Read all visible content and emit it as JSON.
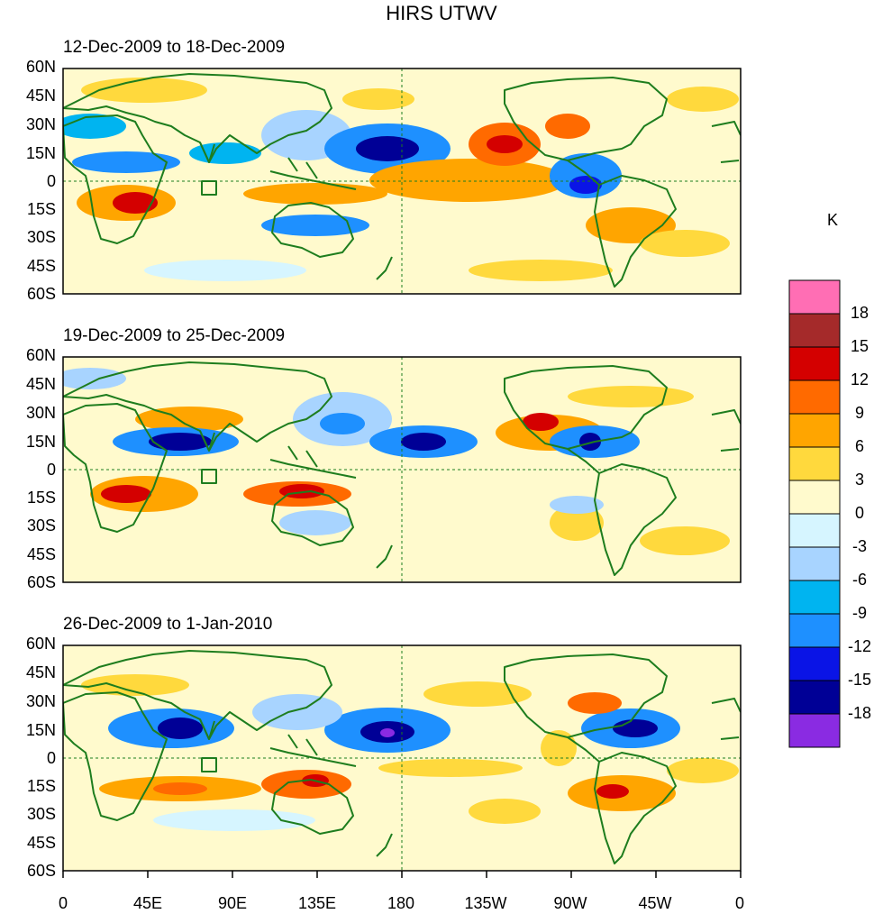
{
  "title": "HIRS UTWV",
  "unit": "K",
  "panels": [
    {
      "label": "12-Dec-2009 to 18-Dec-2009"
    },
    {
      "label": "19-Dec-2009 to 25-Dec-2009"
    },
    {
      "label": "26-Dec-2009 to 1-Jan-2010"
    }
  ],
  "lat_labels": [
    "60N",
    "45N",
    "30N",
    "15N",
    "0",
    "15S",
    "30S",
    "45S",
    "60S"
  ],
  "lon_labels": [
    "0",
    "45E",
    "90E",
    "135E",
    "180",
    "135W",
    "90W",
    "45W",
    "0"
  ],
  "colorbar": {
    "tick_labels": [
      "18",
      "15",
      "12",
      "9",
      "6",
      "3",
      "0",
      "-3",
      "-6",
      "-9",
      "-12",
      "-15",
      "-18"
    ],
    "colors_top_to_bottom": [
      "#ff6eb4",
      "#a52a2a",
      "#d40000",
      "#ff6a00",
      "#ffa500",
      "#ffd93d",
      "#fffacd",
      "#d6f5ff",
      "#a8d4ff",
      "#00b4f0",
      "#1e90ff",
      "#0a14e6",
      "#000096",
      "#8a2be2"
    ]
  },
  "map_colors": {
    "coast": "#1e7d1e",
    "equator": "#1e7d1e"
  }
}
